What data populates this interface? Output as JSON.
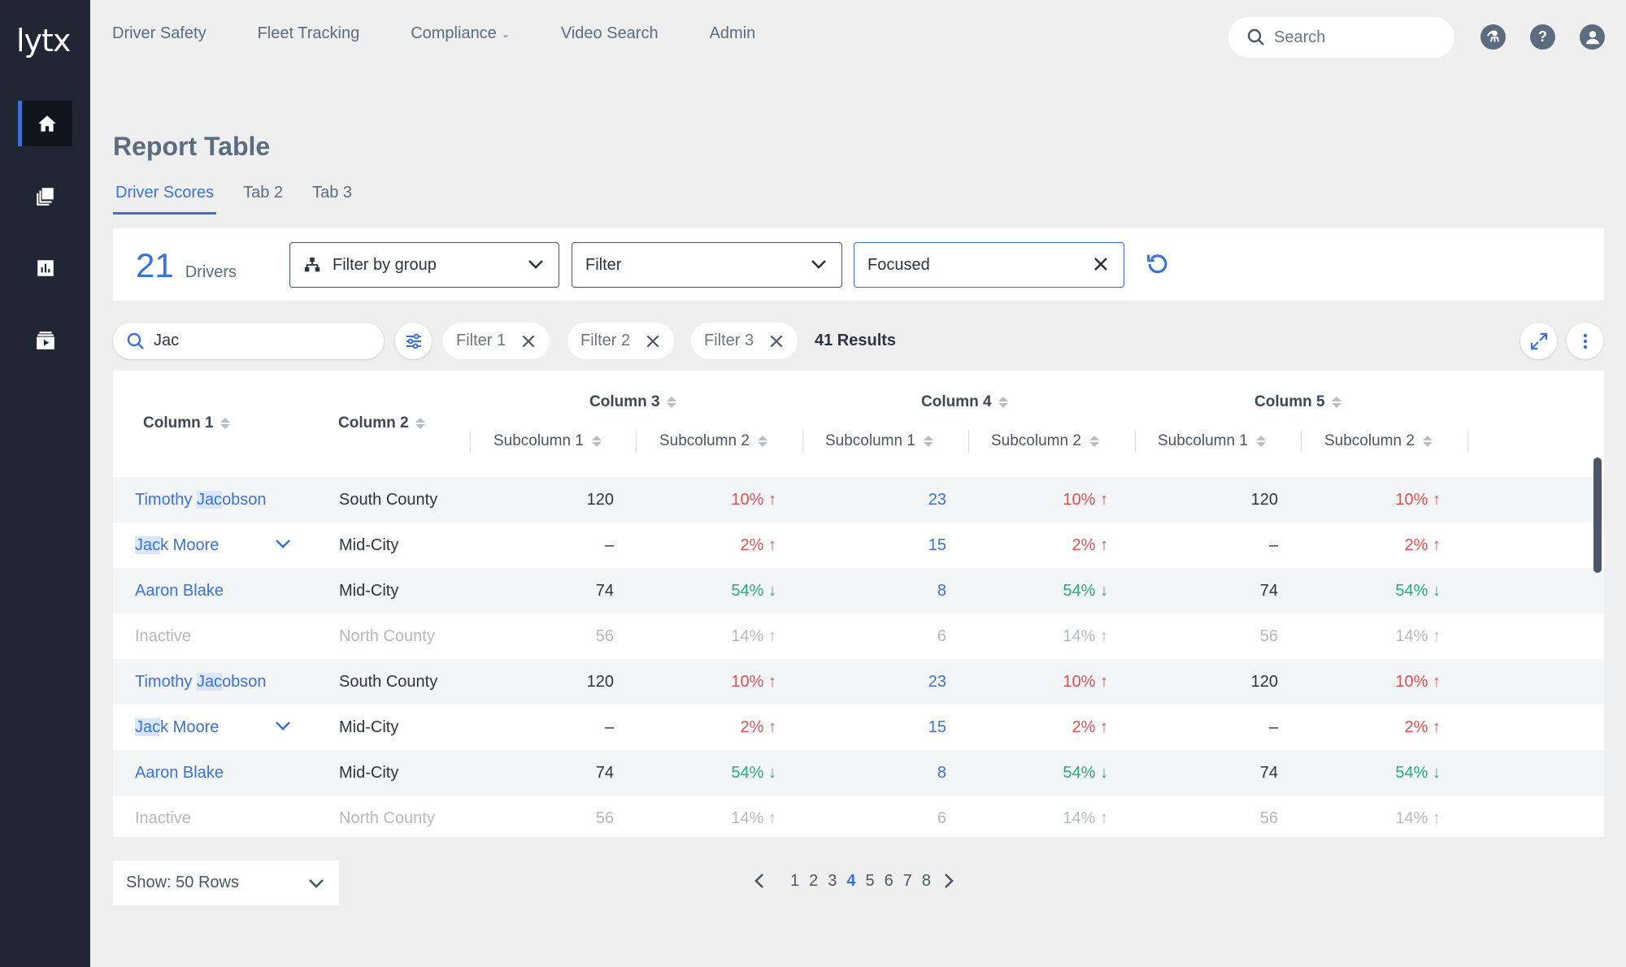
{
  "app": {
    "logo": "lytx"
  },
  "nav": {
    "items": [
      "Driver Safety",
      "Fleet Tracking",
      "Compliance",
      "Video Search",
      "Admin"
    ],
    "search_placeholder": "Search"
  },
  "page": {
    "title": "Report Table",
    "tabs": [
      "Driver Scores",
      "Tab 2",
      "Tab 3"
    ]
  },
  "filters": {
    "count": "21",
    "count_label": "Drivers",
    "group_select": "Filter by group",
    "filter_select": "Filter",
    "focused_value": "Focused"
  },
  "toolbar": {
    "search_value": "Jac",
    "chips": [
      "Filter 1",
      "Filter 2",
      "Filter 3"
    ],
    "results": "41 Results"
  },
  "table": {
    "columns": [
      "Column 1",
      "Column 2",
      "Column 3",
      "Column 4",
      "Column 5"
    ],
    "subcolumns": [
      "Subcolumn 1",
      "Subcolumn 2",
      "Subcolumn 1",
      "Subcolumn 2",
      "Subcolumn 1",
      "Subcolumn 2"
    ],
    "rows": [
      {
        "hl": "Jac",
        "pre": "Timothy ",
        "post": "obson",
        "region": "South County",
        "c3a": "120",
        "c3b": "10% ↑",
        "c4a": "23",
        "c4b": "10% ↑",
        "c5a": "120",
        "c5b": "10% ↑"
      },
      {
        "hl": "Jac",
        "pre": "",
        "post": "k Moore",
        "region": "Mid-City",
        "c3a": "–",
        "c3b": "2% ↑",
        "c4a": "15",
        "c4b": "2% ↑",
        "c5a": "–",
        "c5b": "2% ↑"
      },
      {
        "hl": "",
        "pre": "Aaron Blake",
        "post": "",
        "region": "Mid-City",
        "c3a": "74",
        "c3b": "54% ↓",
        "c4a": "8",
        "c4b": "54% ↓",
        "c5a": "74",
        "c5b": "54% ↓"
      },
      {
        "hl": "",
        "pre": "Inactive",
        "post": "",
        "region": "North County",
        "c3a": "56",
        "c3b": "14% ↑",
        "c4a": "6",
        "c4b": "14% ↑",
        "c5a": "56",
        "c5b": "14% ↑"
      },
      {
        "hl": "Jac",
        "pre": "Timothy ",
        "post": "obson",
        "region": "South County",
        "c3a": "120",
        "c3b": "10% ↑",
        "c4a": "23",
        "c4b": "10% ↑",
        "c5a": "120",
        "c5b": "10% ↑"
      },
      {
        "hl": "Jac",
        "pre": "",
        "post": "k Moore",
        "region": "Mid-City",
        "c3a": "–",
        "c3b": "2% ↑",
        "c4a": "15",
        "c4b": "2% ↑",
        "c5a": "–",
        "c5b": "2% ↑"
      },
      {
        "hl": "",
        "pre": "Aaron Blake",
        "post": "",
        "region": "Mid-City",
        "c3a": "74",
        "c3b": "54% ↓",
        "c4a": "8",
        "c4b": "54% ↓",
        "c5a": "74",
        "c5b": "54% ↓"
      },
      {
        "hl": "",
        "pre": "Inactive",
        "post": "",
        "region": "North County",
        "c3a": "56",
        "c3b": "14% ↑",
        "c4a": "6",
        "c4b": "14% ↑",
        "c5a": "56",
        "c5b": "14% ↑"
      }
    ]
  },
  "pagination": {
    "rows_label": "Show: 50 Rows",
    "pages": [
      "1",
      "2",
      "3",
      "4",
      "5",
      "6",
      "7",
      "8"
    ],
    "current": "4"
  },
  "colors": {
    "accent": "#3b72d9",
    "sidebar": "#1f2634",
    "negative": "#e05050",
    "positive": "#21b07a"
  }
}
